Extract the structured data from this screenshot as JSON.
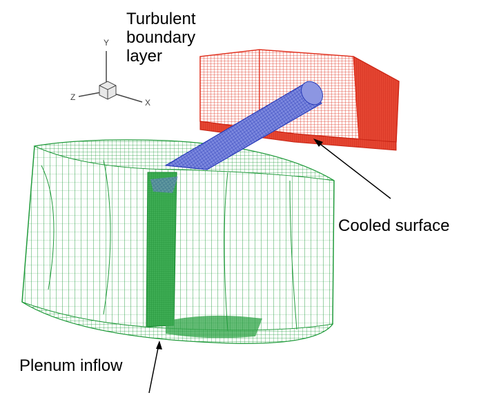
{
  "labels": {
    "turbulent_boundary_layer": [
      "Turbulent",
      "boundary",
      "layer"
    ],
    "cooled_surface": "Cooled surface",
    "plenum_inflow": "Plenum inflow"
  },
  "axis_triad": {
    "y": "Y",
    "z": "Z",
    "x": "X"
  },
  "colors": {
    "boundary_layer_mesh": "#e0301e",
    "cooling_hole_mesh": "#3a4fc8",
    "plenum_mesh": "#1f9a3a",
    "annotation": "#000000"
  }
}
